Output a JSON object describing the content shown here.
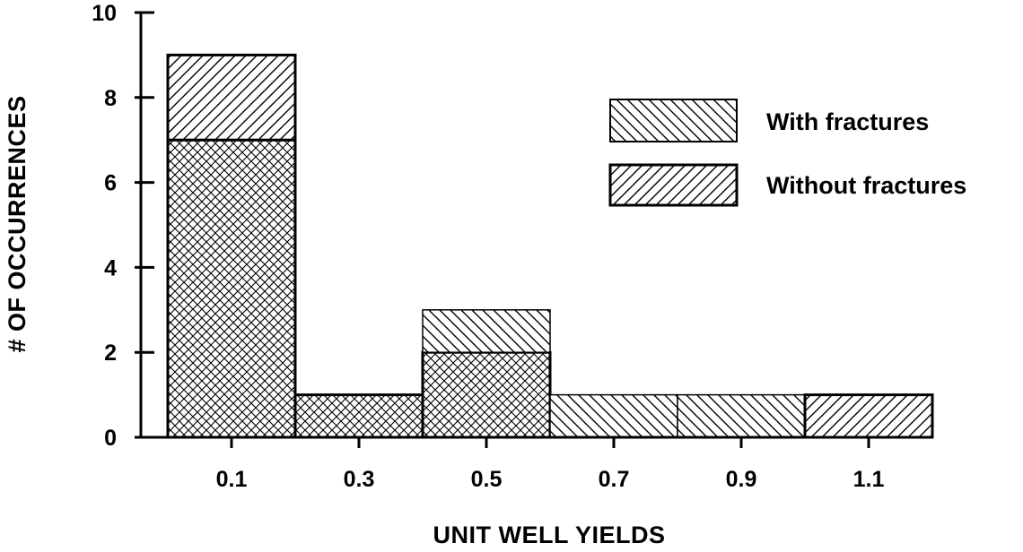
{
  "chart_data": {
    "type": "bar",
    "stacked": true,
    "title": "",
    "xlabel": "UNIT WELL YIELDS",
    "ylabel": "# OF OCCURRENCES",
    "ylim": [
      0,
      10
    ],
    "yticks": [
      "0",
      "2",
      "4",
      "6",
      "8",
      "10"
    ],
    "categories": [
      "0.1",
      "0.3",
      "0.5",
      "0.7",
      "0.9",
      "1.1"
    ],
    "series": [
      {
        "name": "Without fractures",
        "pattern": "crosshatch",
        "values": [
          7,
          1,
          2,
          0,
          0,
          0
        ]
      },
      {
        "name": "With fractures",
        "pattern": "diagonal",
        "values": [
          2,
          0,
          1,
          1,
          1,
          1
        ]
      }
    ],
    "legend": {
      "position": "top-right",
      "items": [
        "With fractures",
        "Without fractures"
      ]
    },
    "grid": false,
    "colors": {
      "line": "#000000",
      "background": "#ffffff"
    }
  }
}
